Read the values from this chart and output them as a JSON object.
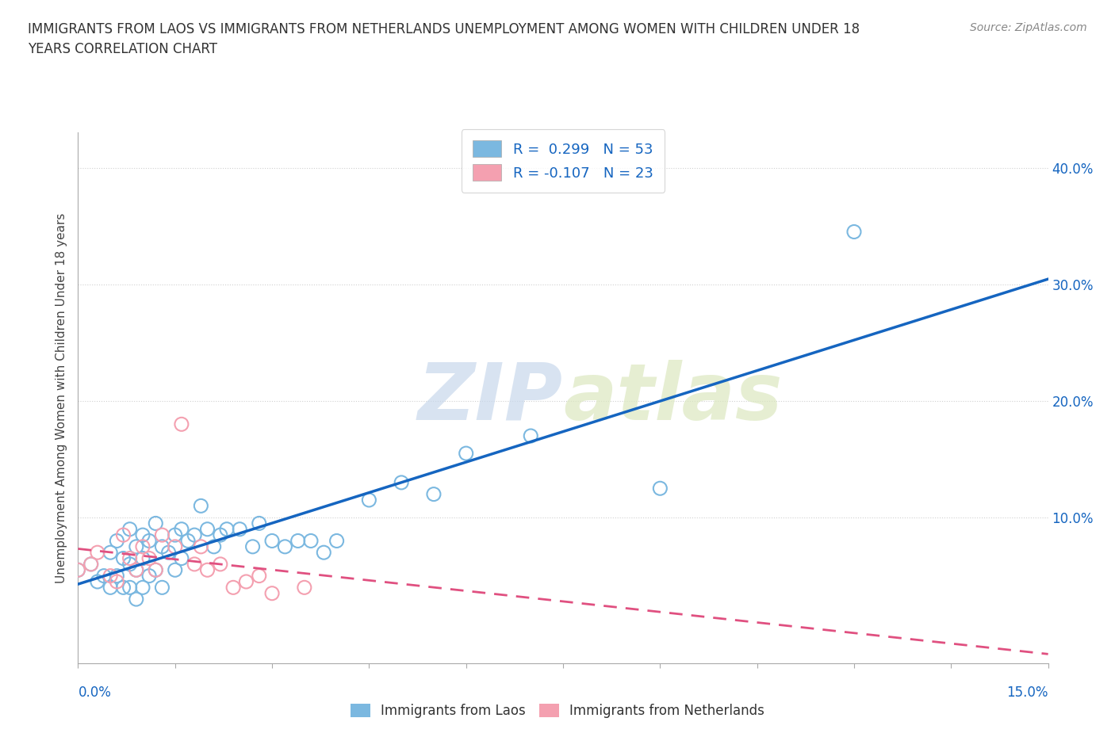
{
  "title": "IMMIGRANTS FROM LAOS VS IMMIGRANTS FROM NETHERLANDS UNEMPLOYMENT AMONG WOMEN WITH CHILDREN UNDER 18\nYEARS CORRELATION CHART",
  "source": "Source: ZipAtlas.com",
  "ylabel": "Unemployment Among Women with Children Under 18 years",
  "y_ticks": [
    0.0,
    0.1,
    0.2,
    0.3,
    0.4
  ],
  "y_tick_labels": [
    "",
    "10.0%",
    "20.0%",
    "30.0%",
    "40.0%"
  ],
  "xmin": 0.0,
  "xmax": 0.15,
  "ymin": -0.025,
  "ymax": 0.43,
  "color_laos": "#7bb8e0",
  "color_netherlands": "#f4a0b0",
  "color_laos_line": "#1565c0",
  "color_netherlands_line": "#e05080",
  "watermark_zip": "ZIP",
  "watermark_atlas": "atlas",
  "laos_x": [
    0.0,
    0.002,
    0.003,
    0.004,
    0.005,
    0.005,
    0.006,
    0.006,
    0.007,
    0.007,
    0.008,
    0.008,
    0.008,
    0.009,
    0.009,
    0.009,
    0.01,
    0.01,
    0.01,
    0.011,
    0.011,
    0.012,
    0.012,
    0.013,
    0.013,
    0.014,
    0.015,
    0.015,
    0.016,
    0.016,
    0.017,
    0.018,
    0.019,
    0.02,
    0.021,
    0.022,
    0.023,
    0.025,
    0.027,
    0.028,
    0.03,
    0.032,
    0.034,
    0.036,
    0.038,
    0.04,
    0.045,
    0.05,
    0.055,
    0.06,
    0.07,
    0.09,
    0.12
  ],
  "laos_y": [
    0.055,
    0.06,
    0.045,
    0.05,
    0.07,
    0.04,
    0.08,
    0.05,
    0.065,
    0.04,
    0.09,
    0.06,
    0.04,
    0.075,
    0.055,
    0.03,
    0.085,
    0.065,
    0.04,
    0.08,
    0.05,
    0.095,
    0.055,
    0.075,
    0.04,
    0.07,
    0.085,
    0.055,
    0.09,
    0.065,
    0.08,
    0.085,
    0.11,
    0.09,
    0.075,
    0.085,
    0.09,
    0.09,
    0.075,
    0.095,
    0.08,
    0.075,
    0.08,
    0.08,
    0.07,
    0.08,
    0.115,
    0.13,
    0.12,
    0.155,
    0.17,
    0.125,
    0.345
  ],
  "netherlands_x": [
    0.0,
    0.002,
    0.003,
    0.005,
    0.006,
    0.007,
    0.008,
    0.009,
    0.01,
    0.011,
    0.012,
    0.013,
    0.015,
    0.016,
    0.018,
    0.019,
    0.02,
    0.022,
    0.024,
    0.026,
    0.028,
    0.03,
    0.035
  ],
  "netherlands_y": [
    0.055,
    0.06,
    0.07,
    0.05,
    0.045,
    0.085,
    0.065,
    0.055,
    0.075,
    0.065,
    0.055,
    0.085,
    0.075,
    0.18,
    0.06,
    0.075,
    0.055,
    0.06,
    0.04,
    0.045,
    0.05,
    0.035,
    0.04
  ]
}
